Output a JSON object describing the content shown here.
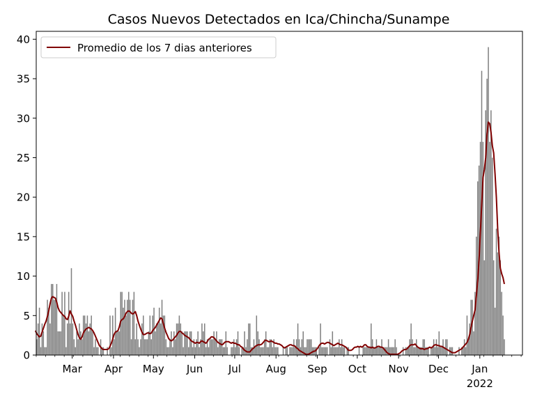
{
  "chart_data": {
    "type": "bar",
    "title": "Casos Nuevos Detectados en Ica/Chincha/Sunampe",
    "xlabel": "",
    "ylabel": "",
    "x_start": "2021-02-02",
    "x_end": "2022-02-02",
    "ylim": [
      0,
      41
    ],
    "yticks": [
      0,
      5,
      10,
      15,
      20,
      25,
      30,
      35,
      40
    ],
    "xticks": [
      {
        "date": "2021-03-01",
        "label": "Mar"
      },
      {
        "date": "2021-04-01",
        "label": "Apr"
      },
      {
        "date": "2021-05-01",
        "label": "May"
      },
      {
        "date": "2021-06-01",
        "label": "Jun"
      },
      {
        "date": "2021-07-01",
        "label": "Jul"
      },
      {
        "date": "2021-08-01",
        "label": "Aug"
      },
      {
        "date": "2021-09-01",
        "label": "Sep"
      },
      {
        "date": "2021-10-01",
        "label": "Oct"
      },
      {
        "date": "2021-11-01",
        "label": "Nov"
      },
      {
        "date": "2021-12-01",
        "label": "Dec"
      },
      {
        "date": "2022-01-01",
        "label": "Jan\n2022"
      }
    ],
    "grid": false,
    "legend_position": "upper-left",
    "bar_color": "#808080",
    "series": [
      {
        "name": "daily-cases",
        "kind": "bar",
        "color": "#808080",
        "values": [
          2,
          4,
          6,
          1,
          4,
          3,
          1,
          1,
          7,
          6,
          4,
          9,
          9,
          7,
          7,
          9,
          3,
          3,
          3,
          8,
          5,
          8,
          1,
          4,
          8,
          4,
          11,
          4,
          2,
          1,
          3,
          2,
          4,
          3,
          2,
          5,
          5,
          4,
          5,
          3,
          4,
          5,
          3,
          1,
          2,
          1,
          1,
          0,
          2,
          1,
          1,
          0,
          0,
          1,
          0,
          5,
          1,
          5,
          2,
          6,
          3,
          3,
          3,
          8,
          8,
          6,
          7,
          5,
          7,
          8,
          7,
          2,
          7,
          8,
          2,
          4,
          2,
          1,
          2,
          4,
          5,
          2,
          2,
          2,
          3,
          5,
          2,
          5,
          6,
          3,
          4,
          4,
          6,
          4,
          7,
          5,
          5,
          2,
          1,
          1,
          2,
          3,
          1,
          3,
          2,
          4,
          4,
          5,
          4,
          3,
          1,
          3,
          3,
          3,
          1,
          3,
          3,
          1,
          2,
          1,
          2,
          3,
          1,
          2,
          4,
          3,
          4,
          1,
          2,
          1,
          2,
          2,
          2,
          3,
          2,
          3,
          1,
          2,
          2,
          2,
          1,
          1,
          3,
          1,
          0,
          0,
          1,
          1,
          2,
          1,
          2,
          3,
          1,
          0,
          1,
          1,
          3,
          1,
          2,
          4,
          4,
          1,
          1,
          2,
          1,
          5,
          3,
          2,
          1,
          1,
          1,
          2,
          3,
          1,
          1,
          2,
          2,
          1,
          2,
          1,
          1,
          1,
          0,
          0,
          0,
          1,
          0,
          1,
          1,
          0,
          1,
          1,
          1,
          2,
          1,
          2,
          4,
          2,
          1,
          2,
          3,
          1,
          1,
          2,
          2,
          2,
          2,
          1,
          1,
          1,
          1,
          0,
          1,
          4,
          1,
          1,
          1,
          1,
          1,
          0,
          2,
          1,
          3,
          1,
          1,
          1,
          1,
          2,
          1,
          2,
          1,
          1,
          0,
          1,
          1,
          0,
          0,
          0,
          0,
          0,
          0,
          0,
          1,
          0,
          0,
          1,
          1,
          1,
          1,
          1,
          1,
          4,
          2,
          1,
          1,
          2,
          1,
          1,
          1,
          2,
          1,
          1,
          1,
          1,
          2,
          1,
          1,
          1,
          1,
          2,
          1,
          0,
          0,
          0,
          0,
          1,
          0,
          1,
          1,
          1,
          2,
          4,
          2,
          1,
          1,
          2,
          1,
          1,
          1,
          1,
          2,
          2,
          1,
          1,
          1,
          0,
          1,
          1,
          2,
          1,
          2,
          1,
          3,
          1,
          1,
          2,
          1,
          2,
          2,
          0,
          1,
          1,
          1,
          0,
          0,
          0,
          0,
          1,
          0,
          1,
          1,
          2,
          1,
          5,
          2,
          4,
          7,
          7,
          3,
          8,
          15,
          22,
          24,
          27,
          36,
          27,
          12,
          31,
          35,
          39,
          27,
          31,
          25,
          12,
          6,
          16,
          13,
          15,
          12,
          8,
          5,
          2
        ],
        "show_in_legend": false
      },
      {
        "name": "Promedio de los 7 dias anteriores",
        "kind": "line",
        "color": "#800000",
        "values": [
          3.1,
          2.7,
          2.5,
          2.3,
          2.4,
          2.9,
          3.4,
          3.9,
          4.3,
          4.9,
          5.6,
          6.5,
          7.2,
          7.4,
          7.3,
          7.2,
          6.7,
          6.0,
          5.6,
          5.4,
          5.2,
          5.0,
          4.9,
          4.6,
          4.5,
          4.9,
          5.6,
          5.2,
          4.9,
          4.3,
          3.8,
          3.2,
          2.6,
          2.2,
          2.0,
          2.3,
          2.8,
          3.1,
          3.3,
          3.4,
          3.5,
          3.4,
          3.3,
          3.1,
          2.8,
          2.4,
          2.0,
          1.6,
          1.2,
          1.0,
          0.8,
          0.7,
          0.7,
          0.7,
          0.7,
          0.8,
          1.1,
          1.5,
          2.0,
          2.6,
          2.9,
          3.0,
          3.1,
          3.6,
          4.3,
          4.5,
          4.6,
          4.9,
          5.3,
          5.5,
          5.6,
          5.5,
          5.3,
          5.2,
          5.3,
          5.5,
          5.0,
          4.3,
          3.8,
          3.3,
          2.9,
          2.6,
          2.6,
          2.7,
          2.8,
          2.8,
          2.7,
          2.8,
          3.1,
          3.3,
          3.5,
          3.8,
          4.1,
          4.4,
          4.7,
          4.6,
          4.0,
          3.4,
          2.9,
          2.5,
          2.1,
          1.9,
          1.8,
          1.9,
          2.1,
          2.3,
          2.5,
          2.8,
          3.0,
          3.0,
          2.8,
          2.7,
          2.5,
          2.4,
          2.3,
          2.2,
          2.0,
          1.8,
          1.7,
          1.6,
          1.5,
          1.6,
          1.6,
          1.5,
          1.7,
          1.8,
          1.7,
          1.6,
          1.5,
          1.7,
          2.0,
          2.1,
          2.3,
          2.3,
          2.2,
          2.0,
          1.8,
          1.6,
          1.5,
          1.4,
          1.3,
          1.4,
          1.6,
          1.7,
          1.7,
          1.7,
          1.6,
          1.5,
          1.6,
          1.5,
          1.5,
          1.4,
          1.3,
          1.3,
          1.1,
          1.0,
          0.8,
          0.6,
          0.5,
          0.4,
          0.4,
          0.4,
          0.6,
          0.8,
          0.9,
          1.1,
          1.2,
          1.3,
          1.3,
          1.3,
          1.4,
          1.6,
          1.8,
          1.9,
          1.8,
          1.7,
          1.7,
          1.8,
          1.7,
          1.6,
          1.5,
          1.5,
          1.4,
          1.4,
          1.3,
          1.2,
          1.0,
          0.9,
          1.0,
          1.1,
          1.2,
          1.3,
          1.3,
          1.2,
          1.2,
          1.1,
          0.9,
          0.8,
          0.6,
          0.5,
          0.4,
          0.3,
          0.2,
          0.1,
          0.1,
          0.1,
          0.2,
          0.3,
          0.4,
          0.5,
          0.5,
          0.7,
          0.9,
          1.2,
          1.4,
          1.5,
          1.5,
          1.4,
          1.5,
          1.6,
          1.6,
          1.5,
          1.4,
          1.3,
          1.2,
          1.3,
          1.4,
          1.5,
          1.4,
          1.3,
          1.3,
          1.2,
          1.1,
          1.0,
          0.8,
          0.6,
          0.6,
          0.6,
          0.7,
          0.9,
          1.0,
          1.0,
          1.1,
          1.0,
          1.1,
          1.0,
          1.1,
          1.3,
          1.3,
          1.1,
          1.0,
          1.0,
          0.9,
          1.0,
          0.9,
          0.9,
          1.0,
          1.1,
          1.1,
          1.0,
          1.0,
          0.9,
          0.7,
          0.5,
          0.3,
          0.2,
          0.1,
          0.1,
          0.1,
          0.1,
          0.1,
          0.1,
          0.1,
          0.2,
          0.3,
          0.5,
          0.6,
          0.7,
          0.7,
          0.8,
          1.0,
          1.2,
          1.3,
          1.3,
          1.3,
          1.4,
          1.2,
          1.0,
          0.9,
          0.8,
          0.8,
          0.8,
          0.7,
          0.8,
          0.8,
          0.9,
          1.0,
          0.9,
          1.0,
          1.2,
          1.3,
          1.3,
          1.2,
          1.2,
          1.1,
          1.1,
          1.0,
          0.9,
          0.8,
          0.7,
          0.6,
          0.5,
          0.4,
          0.3,
          0.3,
          0.3,
          0.4,
          0.5,
          0.6,
          0.7,
          0.8,
          1.0,
          1.2,
          1.4,
          1.6,
          2.0,
          2.6,
          3.5,
          4.3,
          5.0,
          5.7,
          7.5,
          9.4,
          12.0,
          15.5,
          19.0,
          22.5,
          23.5,
          25.0,
          28.0,
          29.5,
          29.3,
          28.2,
          26.5,
          25.6,
          23.0,
          20.0,
          16.0,
          13.0,
          11.0,
          10.3,
          9.8,
          9.0
        ],
        "show_in_legend": true
      }
    ]
  }
}
